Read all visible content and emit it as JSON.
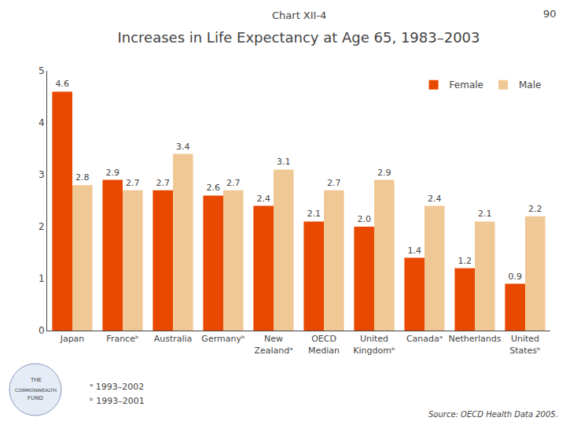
{
  "chart_data": {
    "type": "bar",
    "title": "Increases in Life Expectancy at Age 65, 1983–2003",
    "subtitle": "Chart XII-4",
    "categories": [
      "Japan",
      "Franceᵇ",
      "Australia",
      "Germanyᵇ",
      "New\nZealandᵃ",
      "OECD\nMedian",
      "United\nKingdomᵇ",
      "Canadaᵃ",
      "Netherlands",
      "United\nStatesᵇ"
    ],
    "series": [
      {
        "name": "Female",
        "color": "#E84800",
        "values": [
          4.6,
          2.9,
          2.7,
          2.6,
          2.4,
          2.1,
          2.0,
          1.4,
          1.2,
          0.9
        ],
        "value_labels": [
          "4.6",
          "2.9",
          "2.7",
          "2.6",
          "2.4",
          "2.1",
          "2.0",
          "1.4",
          "1.2",
          "0.9"
        ]
      },
      {
        "name": "Male",
        "color": "#F0C896",
        "values": [
          2.8,
          2.7,
          3.4,
          2.7,
          3.1,
          2.7,
          2.9,
          2.4,
          2.1,
          2.2
        ],
        "value_labels": [
          "2.8",
          "2.7",
          "3.4",
          "2.7",
          "3.1",
          "2.7",
          "2.9",
          "2.4",
          "2.1",
          "2.2"
        ]
      }
    ],
    "ylim": [
      0,
      5
    ],
    "yticks": [
      0,
      1,
      2,
      3,
      4,
      5
    ],
    "grid": false,
    "legend": "upper right",
    "data_labels": true,
    "annotations": [
      "90",
      "ᵃ 1993–2002",
      "ᵇ 1993–2001",
      "Source: OECD Health Data 2005.",
      "THE",
      "COMMONWEALTH",
      "FUND"
    ]
  }
}
